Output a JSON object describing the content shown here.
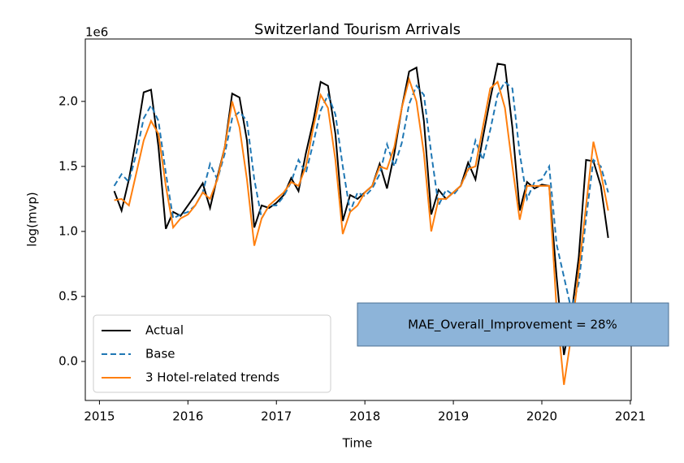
{
  "chart_data": {
    "type": "line",
    "title": "Switzerland Tourism Arrivals",
    "xlabel": "Time",
    "ylabel": "log(mvp)",
    "y_offset_label": "1e6",
    "annotation": "MAE_Overall_Improvement  = 28%",
    "annotation_color": "#8db4d9",
    "legend": "lower left",
    "xlim": [
      2014.84,
      2021.01
    ],
    "xticks": [
      2015,
      2016,
      2017,
      2018,
      2019,
      2020,
      2021
    ],
    "ylim": [
      -0.3,
      2.48
    ],
    "yticks": [
      {
        "value": 0,
        "label": "0.0"
      },
      {
        "value": 0.5,
        "label": "0.5"
      },
      {
        "value": 1,
        "label": "1.0"
      },
      {
        "value": 1.5,
        "label": "1.5"
      },
      {
        "value": 2,
        "label": "2.0"
      }
    ],
    "x": [
      2015.167,
      2015.25,
      2015.333,
      2015.417,
      2015.5,
      2015.583,
      2015.667,
      2015.75,
      2015.833,
      2015.917,
      2016,
      2016.083,
      2016.167,
      2016.25,
      2016.333,
      2016.417,
      2016.5,
      2016.583,
      2016.667,
      2016.75,
      2016.833,
      2016.917,
      2017,
      2017.083,
      2017.167,
      2017.25,
      2017.333,
      2017.417,
      2017.5,
      2017.583,
      2017.667,
      2017.75,
      2017.833,
      2017.917,
      2018,
      2018.083,
      2018.167,
      2018.25,
      2018.333,
      2018.417,
      2018.5,
      2018.583,
      2018.667,
      2018.75,
      2018.833,
      2018.917,
      2019,
      2019.083,
      2019.167,
      2019.25,
      2019.333,
      2019.417,
      2019.5,
      2019.583,
      2019.667,
      2019.75,
      2019.833,
      2019.917,
      2020,
      2020.083,
      2020.167,
      2020.25,
      2020.333,
      2020.417,
      2020.5,
      2020.583,
      2020.667,
      2020.75
    ],
    "series": [
      {
        "name": "Actual",
        "color": "#000000",
        "dashed": false,
        "values": [
          1.31,
          1.16,
          1.4,
          1.72,
          2.07,
          2.09,
          1.65,
          1.02,
          1.15,
          1.12,
          1.2,
          1.28,
          1.37,
          1.18,
          1.42,
          1.65,
          2.06,
          2.03,
          1.7,
          1.03,
          1.2,
          1.18,
          1.22,
          1.28,
          1.41,
          1.31,
          1.6,
          1.85,
          2.15,
          2.12,
          1.75,
          1.08,
          1.28,
          1.25,
          1.3,
          1.35,
          1.52,
          1.33,
          1.6,
          1.95,
          2.23,
          2.26,
          1.85,
          1.13,
          1.32,
          1.25,
          1.3,
          1.35,
          1.53,
          1.4,
          1.72,
          2.02,
          2.29,
          2.28,
          1.8,
          1.16,
          1.38,
          1.33,
          1.36,
          1.35,
          0.65,
          0.05,
          0.35,
          0.8,
          1.55,
          1.54,
          1.35,
          0.95
        ]
      },
      {
        "name": "Base",
        "color": "#1f77b4",
        "dashed": true,
        "values": [
          1.35,
          1.44,
          1.38,
          1.6,
          1.87,
          1.97,
          1.85,
          1.45,
          1.1,
          1.13,
          1.15,
          1.2,
          1.3,
          1.52,
          1.4,
          1.6,
          1.87,
          1.92,
          1.85,
          1.4,
          1.1,
          1.2,
          1.2,
          1.27,
          1.38,
          1.55,
          1.45,
          1.68,
          1.93,
          2.05,
          1.9,
          1.5,
          1.15,
          1.3,
          1.27,
          1.33,
          1.44,
          1.67,
          1.5,
          1.68,
          1.98,
          2.12,
          2.05,
          1.6,
          1.2,
          1.32,
          1.28,
          1.35,
          1.47,
          1.7,
          1.55,
          1.78,
          2.05,
          2.15,
          2.1,
          1.6,
          1.25,
          1.38,
          1.4,
          1.5,
          0.9,
          0.65,
          0.4,
          0.6,
          1.1,
          1.55,
          1.5,
          1.3
        ]
      },
      {
        "name": "3 Hotel-related trends",
        "color": "#ff7f0e",
        "dashed": false,
        "values": [
          1.24,
          1.25,
          1.2,
          1.45,
          1.7,
          1.85,
          1.75,
          1.35,
          1.03,
          1.1,
          1.13,
          1.2,
          1.3,
          1.25,
          1.4,
          1.65,
          2.0,
          1.8,
          1.4,
          0.89,
          1.1,
          1.2,
          1.25,
          1.3,
          1.38,
          1.35,
          1.5,
          1.8,
          2.05,
          1.95,
          1.55,
          0.98,
          1.15,
          1.2,
          1.3,
          1.35,
          1.5,
          1.48,
          1.65,
          1.95,
          2.17,
          2.0,
          1.6,
          1.0,
          1.25,
          1.25,
          1.3,
          1.35,
          1.48,
          1.5,
          1.8,
          2.1,
          2.15,
          1.95,
          1.5,
          1.09,
          1.35,
          1.35,
          1.35,
          1.35,
          0.4,
          -0.18,
          0.2,
          0.7,
          1.2,
          1.69,
          1.45,
          1.16
        ]
      }
    ]
  }
}
